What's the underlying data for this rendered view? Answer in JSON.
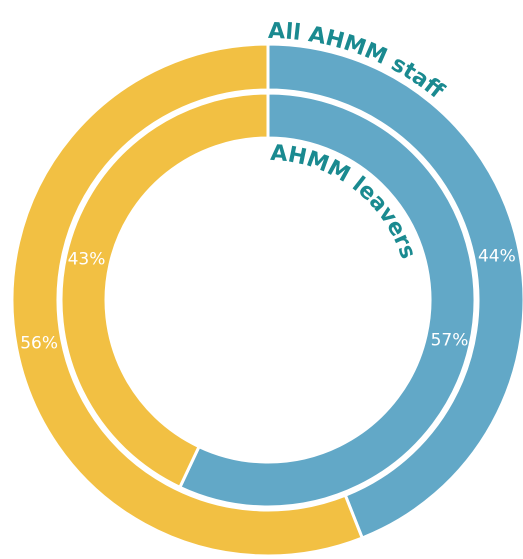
{
  "chart_data": {
    "type": "nested-donut",
    "colors": [
      "#62a8c7",
      "#f2c043"
    ],
    "series": [
      {
        "name": "All AHMM staff",
        "values": [
          44,
          56
        ],
        "value_labels": [
          "44%",
          "56%"
        ]
      },
      {
        "name": "AHMM leavers",
        "values": [
          57,
          43
        ],
        "value_labels": [
          "57%",
          "43%"
        ]
      }
    ]
  }
}
